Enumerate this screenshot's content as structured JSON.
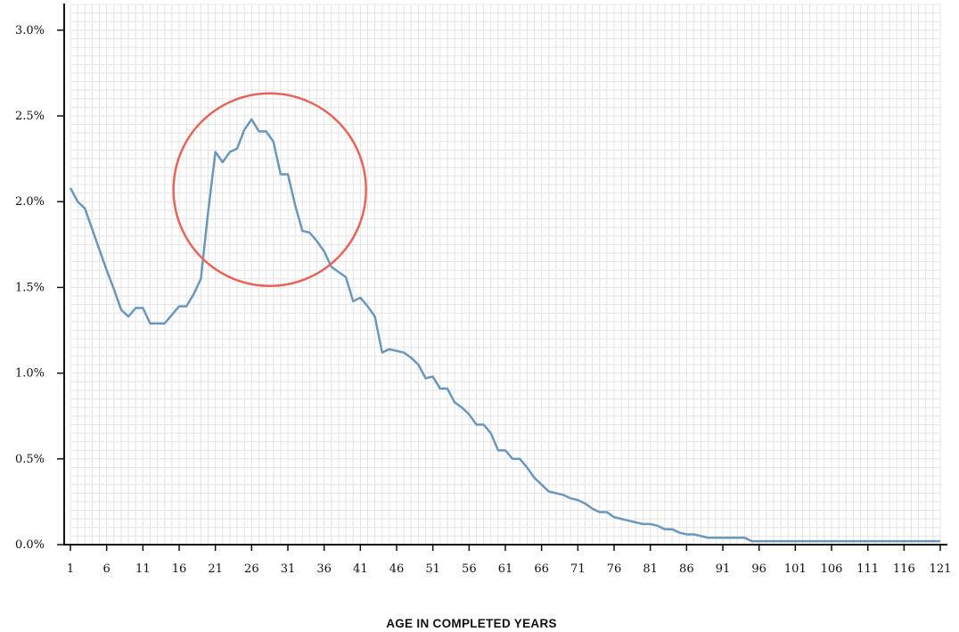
{
  "chart_data": {
    "type": "line",
    "title": "",
    "xlabel": "AGE IN COMPLETED YEARS",
    "ylabel": "",
    "xlim": [
      1,
      121
    ],
    "ylim": [
      0,
      3.15
    ],
    "x_ticks": [
      1,
      6,
      11,
      16,
      21,
      26,
      31,
      36,
      41,
      46,
      51,
      56,
      61,
      66,
      71,
      76,
      81,
      86,
      91,
      96,
      101,
      106,
      111,
      116,
      121
    ],
    "x_tick_labels": [
      "1",
      "6",
      "11",
      "16",
      "21",
      "26",
      "31",
      "36",
      "41",
      "46",
      "51",
      "56",
      "61",
      "66",
      "71",
      "76",
      "81",
      "86",
      "91",
      "96",
      "101",
      "106",
      "111",
      "116",
      "121"
    ],
    "y_ticks": [
      0,
      0.5,
      1.0,
      1.5,
      2.0,
      2.5,
      3.0
    ],
    "y_tick_labels": [
      "0.0%",
      "0.5%",
      "1.0%",
      "1.5%",
      "2.0%",
      "2.5%",
      "3.0%"
    ],
    "grid": true,
    "line_color": "#6b97bd",
    "highlight_circle": {
      "center_x": 28.5,
      "center_y": 2.07,
      "color": "#e8645a"
    },
    "series": [
      {
        "x": [
          1,
          2,
          3,
          4,
          5,
          6,
          7,
          8,
          9,
          10,
          11,
          12,
          13,
          14,
          15,
          16,
          17,
          18,
          19,
          20,
          21,
          22,
          23,
          24,
          25,
          26,
          27,
          28,
          29,
          30,
          31,
          32,
          33,
          34,
          35,
          36,
          37,
          38,
          39,
          40,
          41,
          42,
          43,
          44,
          45,
          46,
          47,
          48,
          49,
          50,
          51,
          52,
          53,
          54,
          55,
          56,
          57,
          58,
          59,
          60,
          61,
          62,
          63,
          64,
          65,
          66,
          67,
          68,
          69,
          70,
          71,
          72,
          73,
          74,
          75,
          76,
          77,
          78,
          79,
          80,
          81,
          82,
          83,
          84,
          85,
          86,
          87,
          88,
          89,
          90,
          91,
          92,
          93,
          94,
          95,
          96,
          97,
          98,
          99,
          100,
          101,
          102,
          103,
          104,
          105,
          106,
          107,
          108,
          109,
          110,
          111,
          112,
          113,
          114,
          115,
          116,
          117,
          118,
          119,
          120,
          121
        ],
        "values": [
          2.08,
          2.0,
          1.96,
          1.84,
          1.72,
          1.6,
          1.49,
          1.37,
          1.33,
          1.38,
          1.38,
          1.29,
          1.29,
          1.29,
          1.34,
          1.39,
          1.39,
          1.46,
          1.55,
          1.94,
          2.29,
          2.23,
          2.29,
          2.31,
          2.42,
          2.48,
          2.41,
          2.41,
          2.35,
          2.16,
          2.16,
          1.98,
          1.83,
          1.82,
          1.77,
          1.71,
          1.62,
          1.59,
          1.56,
          1.42,
          1.44,
          1.39,
          1.33,
          1.12,
          1.14,
          1.13,
          1.12,
          1.09,
          1.05,
          0.97,
          0.98,
          0.91,
          0.91,
          0.83,
          0.8,
          0.76,
          0.7,
          0.7,
          0.65,
          0.55,
          0.55,
          0.5,
          0.5,
          0.45,
          0.39,
          0.35,
          0.31,
          0.3,
          0.29,
          0.27,
          0.26,
          0.24,
          0.21,
          0.19,
          0.19,
          0.16,
          0.15,
          0.14,
          0.13,
          0.12,
          0.12,
          0.11,
          0.09,
          0.09,
          0.07,
          0.06,
          0.06,
          0.05,
          0.04,
          0.04,
          0.04,
          0.04,
          0.04,
          0.04,
          0.02,
          0.02,
          0.02,
          0.02,
          0.02,
          0.02,
          0.02,
          0.02,
          0.02,
          0.02,
          0.02,
          0.02,
          0.02,
          0.02,
          0.02,
          0.02,
          0.02,
          0.02,
          0.02,
          0.02,
          0.02,
          0.02,
          0.02,
          0.02,
          0.02,
          0.02,
          0.02
        ]
      }
    ]
  }
}
